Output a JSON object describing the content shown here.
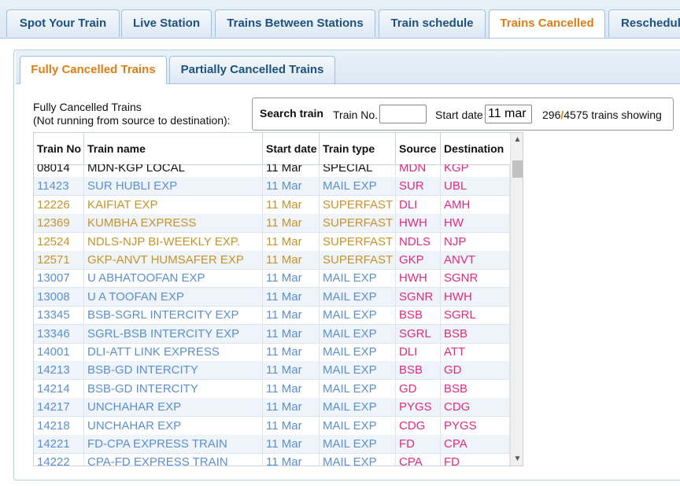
{
  "top_tabs": [
    {
      "label": "Spot Your Train"
    },
    {
      "label": "Live Station"
    },
    {
      "label": "Trains Between Stations"
    },
    {
      "label": "Train schedule"
    },
    {
      "label": "Trains Cancelled"
    },
    {
      "label": "Rescheduled"
    }
  ],
  "sub_tabs": [
    {
      "label": "Fully Cancelled Trains"
    },
    {
      "label": "Partially Cancelled Trains"
    }
  ],
  "description": {
    "line1": "Fully Cancelled Trains",
    "line2": "(Not running from source to destination):"
  },
  "search": {
    "heading": "Search train",
    "train_no_label": "Train No.",
    "train_no_value": "",
    "start_date_label": "Start date",
    "start_date_value": "11 mar",
    "count_shown": "296",
    "separator": "/",
    "count_total": "4575",
    "count_suffix": "trains showing"
  },
  "table": {
    "headers": {
      "train_no": "Train No",
      "train_name": "Train name",
      "start_date": "Start date",
      "train_type": "Train type",
      "source": "Source",
      "destination": "Destination"
    },
    "rows": [
      {
        "no": "08014",
        "name": "MDN-KGP LOCAL",
        "date": "11 Mar",
        "type": "SPECIAL",
        "src": "MDN",
        "dst": "KGP"
      },
      {
        "no": "11423",
        "name": "SUR HUBLI EXP",
        "date": "11 Mar",
        "type": "MAIL EXP",
        "src": "SUR",
        "dst": "UBL"
      },
      {
        "no": "12226",
        "name": "KAIFIAT EXP",
        "date": "11 Mar",
        "type": "SUPERFAST",
        "src": "DLI",
        "dst": "AMH"
      },
      {
        "no": "12369",
        "name": "KUMBHA EXPRESS",
        "date": "11 Mar",
        "type": "SUPERFAST",
        "src": "HWH",
        "dst": "HW"
      },
      {
        "no": "12524",
        "name": "NDLS-NJP BI-WEEKLY EXP.",
        "date": "11 Mar",
        "type": "SUPERFAST",
        "src": "NDLS",
        "dst": "NJP"
      },
      {
        "no": "12571",
        "name": "GKP-ANVT HUMSAFER EXP",
        "date": "11 Mar",
        "type": "SUPERFAST",
        "src": "GKP",
        "dst": "ANVT"
      },
      {
        "no": "13007",
        "name": "U ABHATOOFAN EXP",
        "date": "11 Mar",
        "type": "MAIL EXP",
        "src": "HWH",
        "dst": "SGNR"
      },
      {
        "no": "13008",
        "name": "U A TOOFAN EXP",
        "date": "11 Mar",
        "type": "MAIL EXP",
        "src": "SGNR",
        "dst": "HWH"
      },
      {
        "no": "13345",
        "name": "BSB-SGRL INTERCITY EXP",
        "date": "11 Mar",
        "type": "MAIL EXP",
        "src": "BSB",
        "dst": "SGRL"
      },
      {
        "no": "13346",
        "name": "SGRL-BSB INTERCITY EXP",
        "date": "11 Mar",
        "type": "MAIL EXP",
        "src": "SGRL",
        "dst": "BSB"
      },
      {
        "no": "14001",
        "name": "DLI-ATT LINK EXPRESS",
        "date": "11 Mar",
        "type": "MAIL EXP",
        "src": "DLI",
        "dst": "ATT"
      },
      {
        "no": "14213",
        "name": "BSB-GD INTERCITY",
        "date": "11 Mar",
        "type": "MAIL EXP",
        "src": "BSB",
        "dst": "GD"
      },
      {
        "no": "14214",
        "name": "BSB-GD INTERCITY",
        "date": "11 Mar",
        "type": "MAIL EXP",
        "src": "GD",
        "dst": "BSB"
      },
      {
        "no": "14217",
        "name": "UNCHAHAR EXP",
        "date": "11 Mar",
        "type": "MAIL EXP",
        "src": "PYGS",
        "dst": "CDG"
      },
      {
        "no": "14218",
        "name": "UNCHAHAR EXP",
        "date": "11 Mar",
        "type": "MAIL EXP",
        "src": "CDG",
        "dst": "PYGS"
      },
      {
        "no": "14221",
        "name": "FD-CPA EXPRESS TRAIN",
        "date": "11 Mar",
        "type": "MAIL EXP",
        "src": "FD",
        "dst": "CPA"
      },
      {
        "no": "14222",
        "name": "CPA-FD EXPRESS TRAIN",
        "date": "11 Mar",
        "type": "MAIL EXP",
        "src": "CPA",
        "dst": "FD"
      }
    ]
  },
  "colors": {
    "special": "#111111",
    "mail_exp": "#5b8fd0",
    "superfast": "#c8922a",
    "station": "#e0297f",
    "accent_active_tab": "#e07d16",
    "tab_text": "#1f5180"
  },
  "icons": {
    "scroll_up": "▲",
    "scroll_down": "▼"
  }
}
